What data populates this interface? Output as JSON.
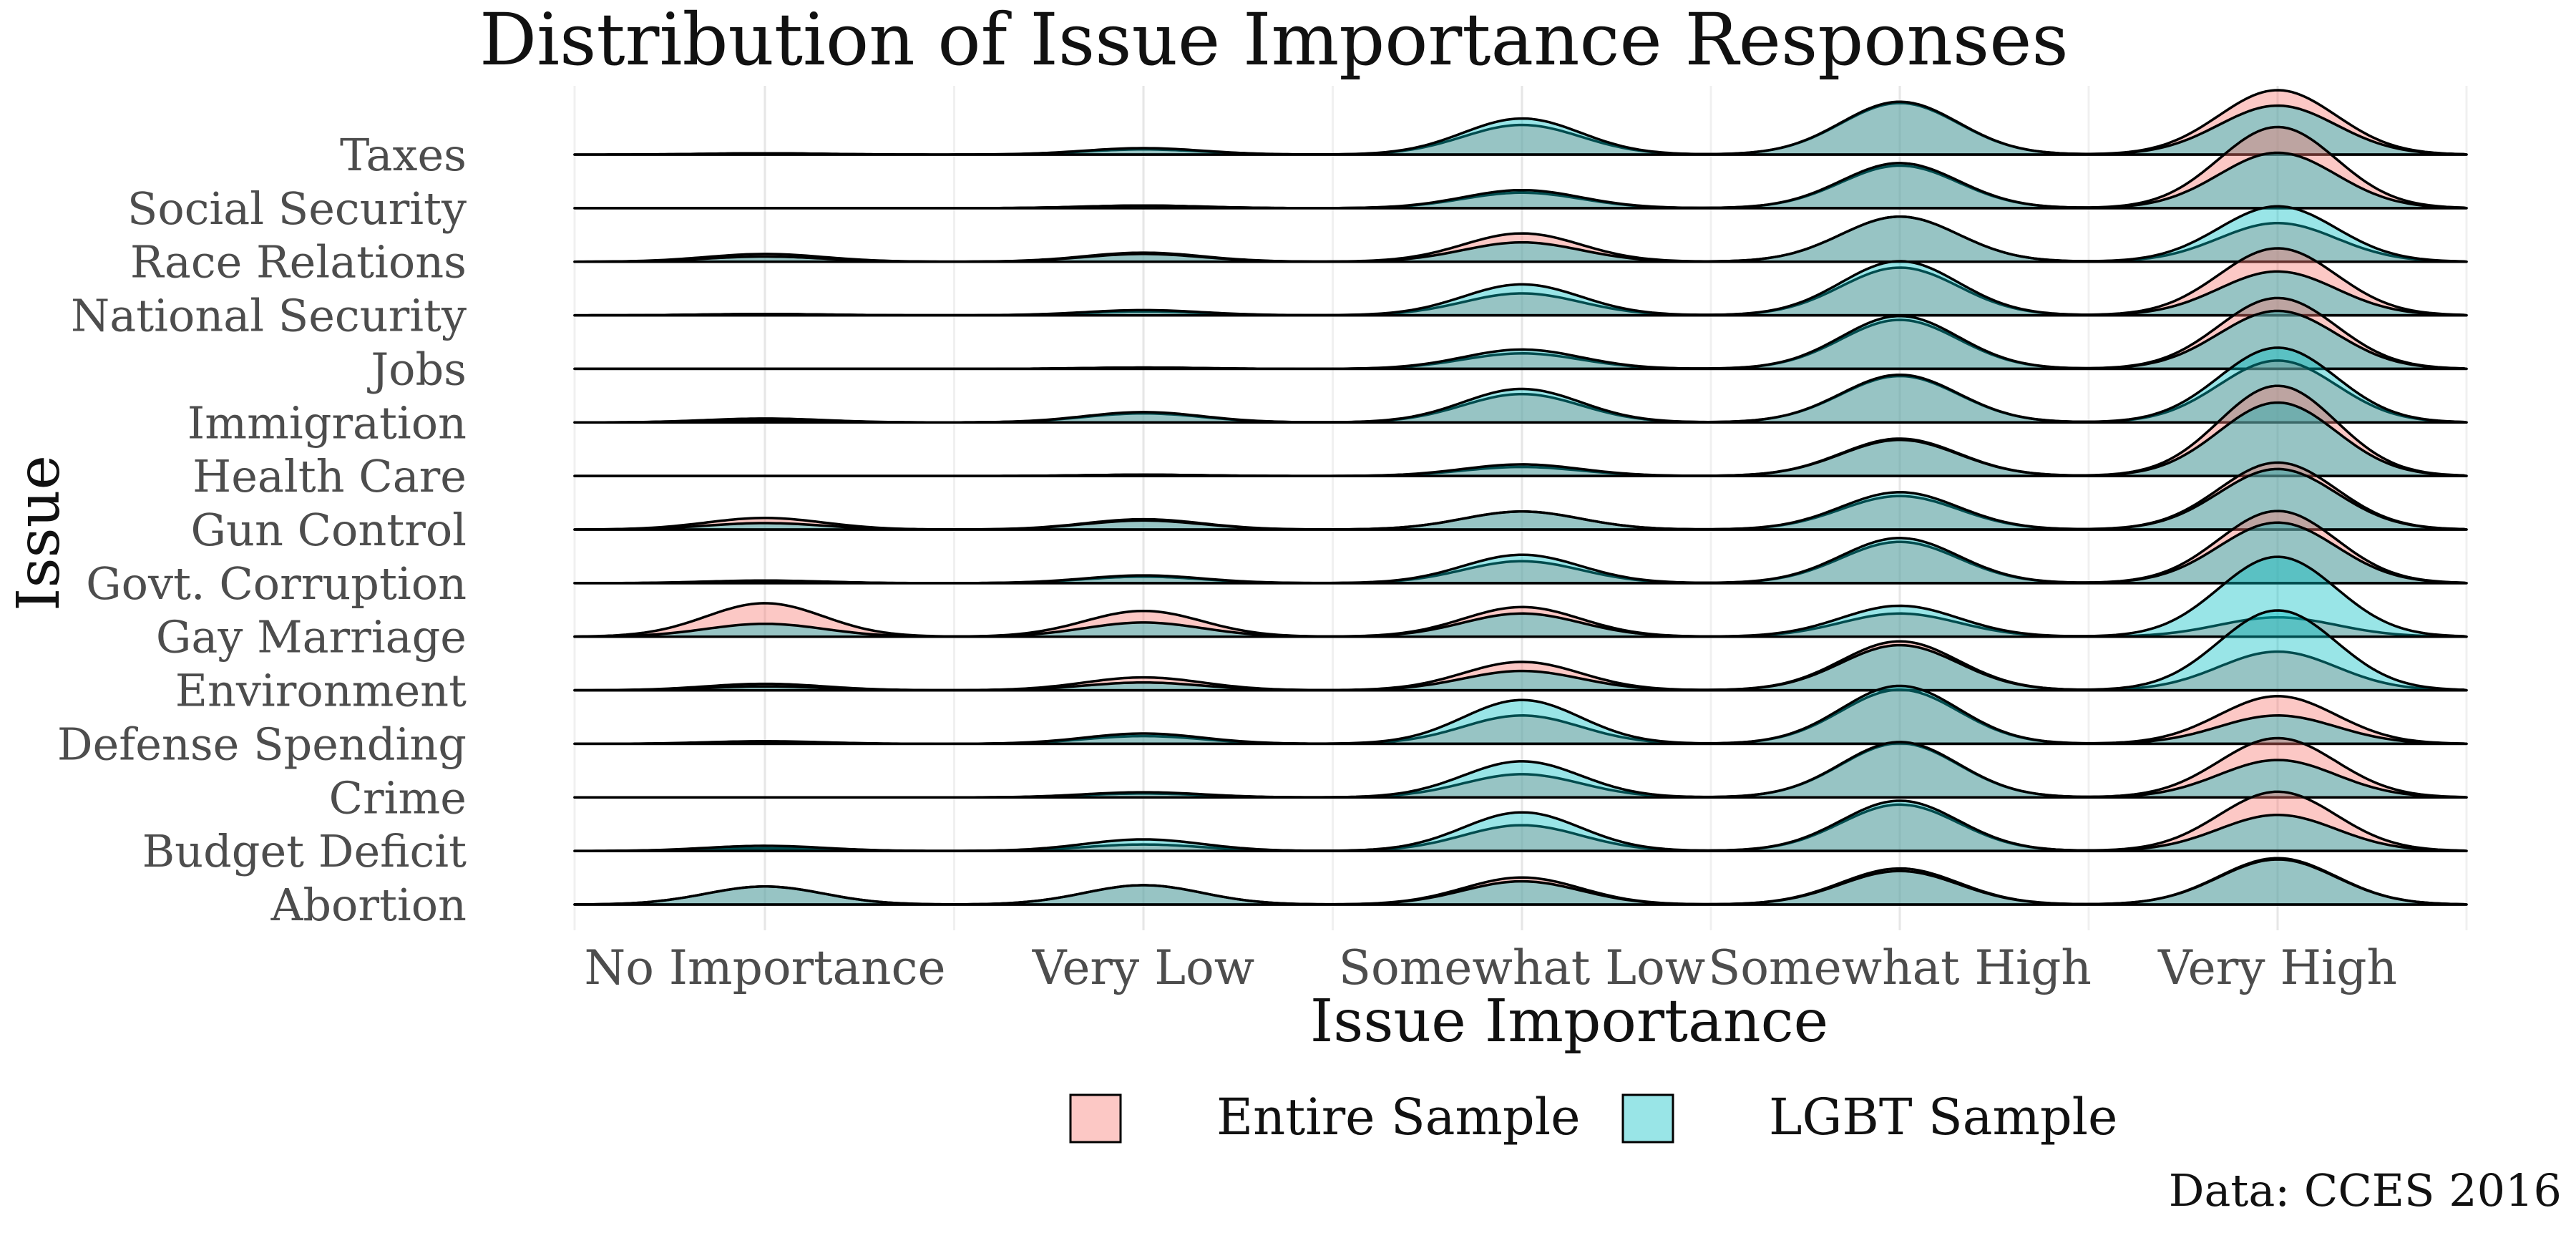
{
  "chart_data": {
    "type": "ridgeline",
    "title": "Distribution of Issue Importance Responses",
    "xlabel": "Issue Importance",
    "ylabel": "Issue",
    "caption": "Data: CCES 2016",
    "categories": [
      "No Importance",
      "Very Low",
      "Somewhat Low",
      "Somewhat High",
      "Very High"
    ],
    "issues": [
      "Taxes",
      "Social Security",
      "Race Relations",
      "National Security",
      "Jobs",
      "Immigration",
      "Health Care",
      "Gun Control",
      "Govt. Corruption",
      "Gay Marriage",
      "Environment",
      "Defense Spending",
      "Crime",
      "Budget Deficit",
      "Abortion"
    ],
    "legend": {
      "position": "bottom",
      "entries": [
        {
          "name": "Entire Sample",
          "color": "#F8766D"
        },
        {
          "name": "LGBT Sample",
          "color": "#00BFC4"
        }
      ]
    },
    "series": [
      {
        "name": "Entire Sample",
        "color": "#F8766D",
        "values": [
          [
            0.01,
            0.04,
            0.23,
            0.4,
            0.5
          ],
          [
            0.0,
            0.02,
            0.12,
            0.33,
            0.63
          ],
          [
            0.06,
            0.07,
            0.22,
            0.35,
            0.3
          ],
          [
            0.01,
            0.03,
            0.17,
            0.37,
            0.52
          ],
          [
            0.0,
            0.01,
            0.12,
            0.38,
            0.55
          ],
          [
            0.03,
            0.07,
            0.22,
            0.36,
            0.48
          ],
          [
            0.0,
            0.01,
            0.07,
            0.29,
            0.7
          ],
          [
            0.09,
            0.08,
            0.14,
            0.26,
            0.52
          ],
          [
            0.02,
            0.05,
            0.17,
            0.32,
            0.56
          ],
          [
            0.26,
            0.2,
            0.23,
            0.18,
            0.15
          ],
          [
            0.05,
            0.1,
            0.22,
            0.38,
            0.3
          ],
          [
            0.02,
            0.06,
            0.22,
            0.42,
            0.37
          ],
          [
            0.0,
            0.03,
            0.18,
            0.42,
            0.46
          ],
          [
            0.02,
            0.05,
            0.2,
            0.36,
            0.46
          ],
          [
            0.14,
            0.15,
            0.21,
            0.28,
            0.36
          ]
        ]
      },
      {
        "name": "LGBT Sample",
        "color": "#00BFC4",
        "values": [
          [
            0.01,
            0.05,
            0.28,
            0.41,
            0.38
          ],
          [
            0.0,
            0.02,
            0.14,
            0.35,
            0.43
          ],
          [
            0.04,
            0.06,
            0.15,
            0.35,
            0.43
          ],
          [
            0.01,
            0.04,
            0.24,
            0.42,
            0.34
          ],
          [
            0.0,
            0.01,
            0.15,
            0.41,
            0.45
          ],
          [
            0.02,
            0.08,
            0.26,
            0.37,
            0.58
          ],
          [
            0.0,
            0.01,
            0.09,
            0.28,
            0.57
          ],
          [
            0.05,
            0.07,
            0.14,
            0.29,
            0.47
          ],
          [
            0.01,
            0.06,
            0.22,
            0.35,
            0.47
          ],
          [
            0.1,
            0.11,
            0.18,
            0.24,
            0.62
          ],
          [
            0.03,
            0.06,
            0.15,
            0.35,
            0.62
          ],
          [
            0.01,
            0.08,
            0.34,
            0.45,
            0.22
          ],
          [
            0.0,
            0.04,
            0.28,
            0.43,
            0.29
          ],
          [
            0.04,
            0.09,
            0.3,
            0.39,
            0.28
          ],
          [
            0.14,
            0.15,
            0.18,
            0.26,
            0.35
          ]
        ]
      }
    ],
    "grid": true
  }
}
